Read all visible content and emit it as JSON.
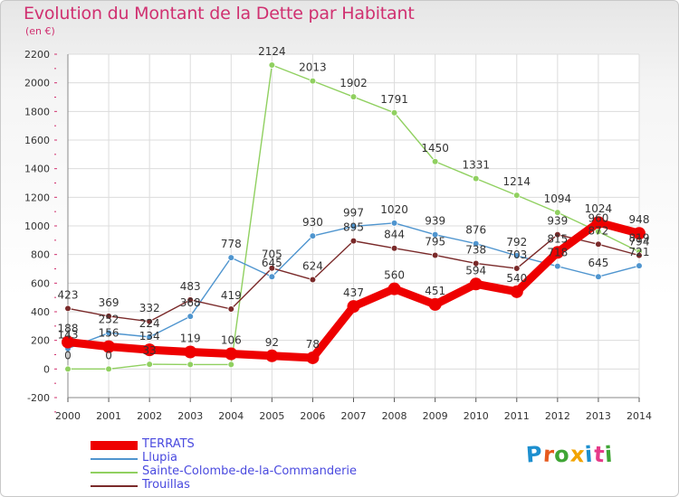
{
  "title": "Evolution du Montant de la Dette par Habitant",
  "unit": "(en €)",
  "logo": {
    "text": "Proxiti",
    "colors": [
      "#1d8fcf",
      "#e65a1e",
      "#3fa535",
      "#f2a400",
      "#1d8fcf",
      "#e63a8a",
      "#3fa535"
    ]
  },
  "chart_data": {
    "type": "line",
    "x": [
      2000,
      2001,
      2002,
      2003,
      2004,
      2005,
      2006,
      2007,
      2008,
      2009,
      2010,
      2011,
      2012,
      2013,
      2014
    ],
    "ylim": [
      -200,
      2200
    ],
    "yticks": [
      -200,
      0,
      200,
      400,
      600,
      800,
      1000,
      1200,
      1400,
      1600,
      1800,
      2000,
      2200
    ],
    "grid": true,
    "legend_position": "bottom-left",
    "series": [
      {
        "name": "TERRATS",
        "color": "#ee0000",
        "width": 9,
        "values": [
          188,
          156,
          134,
          119,
          106,
          92,
          78,
          437,
          560,
          451,
          594,
          540,
          815,
          1024,
          948
        ]
      },
      {
        "name": "Llupia",
        "color": "#4f95cf",
        "width": 1.4,
        "values": [
          143,
          252,
          224,
          368,
          778,
          645,
          930,
          997,
          1020,
          939,
          876,
          792,
          718,
          645,
          721
        ]
      },
      {
        "name": "Sainte-Colombe-de-la-Commanderie",
        "color": "#90d060",
        "width": 1.4,
        "values": [
          0,
          0,
          33,
          31,
          31,
          2124,
          2013,
          1902,
          1791,
          1450,
          1331,
          1214,
          1094,
          960,
          819
        ]
      },
      {
        "name": "Trouillas",
        "color": "#7a2a2a",
        "width": 1.4,
        "values": [
          423,
          369,
          332,
          483,
          419,
          705,
          624,
          895,
          844,
          795,
          738,
          703,
          939,
          872,
          794
        ]
      }
    ],
    "labels": [
      [
        "423",
        "369",
        "332",
        "483",
        "419",
        "705",
        "624",
        "895",
        "844",
        "795",
        "738",
        "703",
        "939",
        "872",
        "794"
      ],
      [
        "143",
        "252",
        "224",
        "368",
        "778",
        "645",
        "930",
        "997",
        "1020",
        "939",
        "876",
        "792",
        "718",
        "645",
        "721"
      ],
      [
        "0",
        "0",
        "33",
        "",
        "",
        "2124",
        "2013",
        "1902",
        "1791",
        "1450",
        "1331",
        "1214",
        "1094",
        "960",
        "819"
      ],
      [
        "188",
        "156",
        "134",
        "119",
        "106",
        "92",
        "78",
        "437",
        "560",
        "451",
        "594",
        "540",
        "815",
        "1024",
        "948"
      ]
    ]
  }
}
